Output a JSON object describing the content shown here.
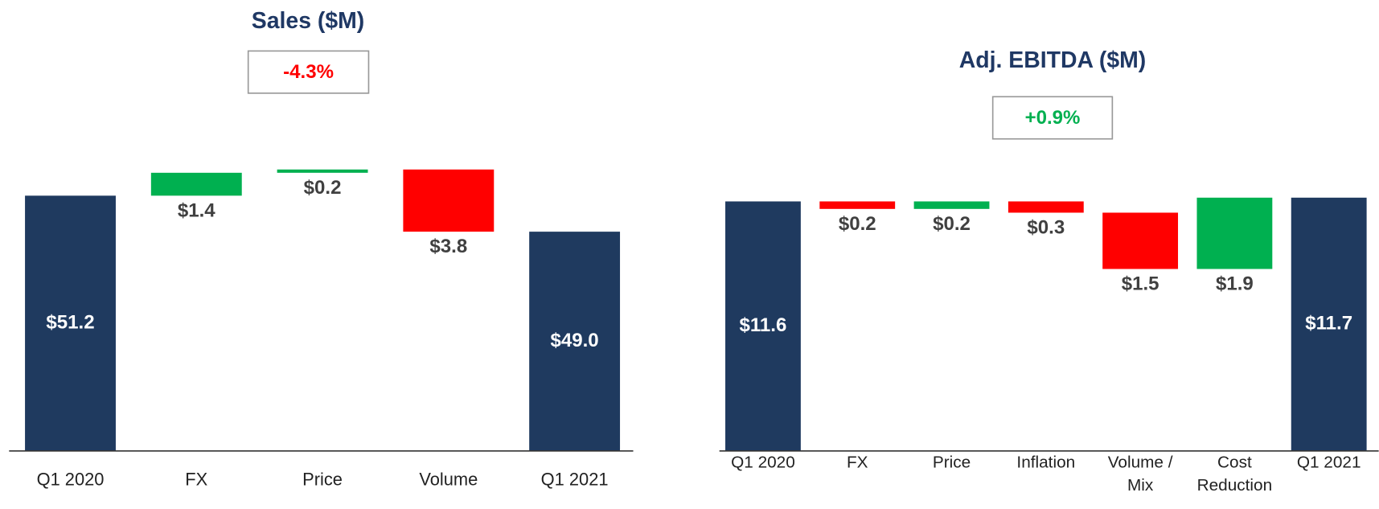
{
  "chart_data": [
    {
      "type": "waterfall",
      "title": "Sales ($M)",
      "annotation": "-4.3%",
      "annotation_color": "#ff0000",
      "categories": [
        "Q1 2020",
        "FX",
        "Price",
        "Volume",
        "Q1 2021"
      ],
      "values": [
        51.2,
        1.4,
        0.2,
        -3.8,
        49.0
      ],
      "value_labels": [
        "$51.2",
        "$1.4",
        "$0.2",
        "$3.8",
        "$49.0"
      ],
      "measures": [
        "total",
        "relative",
        "relative",
        "relative",
        "total"
      ],
      "colors": {
        "total": "#1f3a5f",
        "increase": "#00b050",
        "decrease": "#ff0000"
      },
      "ylim": [
        35.6,
        58
      ]
    },
    {
      "type": "waterfall",
      "title": "Adj. EBITDA ($M)",
      "annotation": "+0.9%",
      "annotation_color": "#00b050",
      "categories": [
        "Q1 2020",
        "FX",
        "Price",
        "Inflation",
        "Volume / Mix",
        "Cost Reduction",
        "Q1 2021"
      ],
      "values": [
        11.6,
        -0.2,
        0.2,
        -0.3,
        -1.5,
        1.9,
        11.7
      ],
      "value_labels": [
        "$11.6",
        "$0.2",
        "$0.2",
        "$0.3",
        "$1.5",
        "$1.9",
        "$11.7"
      ],
      "measures": [
        "total",
        "relative",
        "relative",
        "relative",
        "relative",
        "relative",
        "total"
      ],
      "colors": {
        "total": "#1f3a5f",
        "increase": "#00b050",
        "decrease": "#ff0000"
      },
      "ylim": [
        4.95,
        13.5
      ]
    }
  ]
}
